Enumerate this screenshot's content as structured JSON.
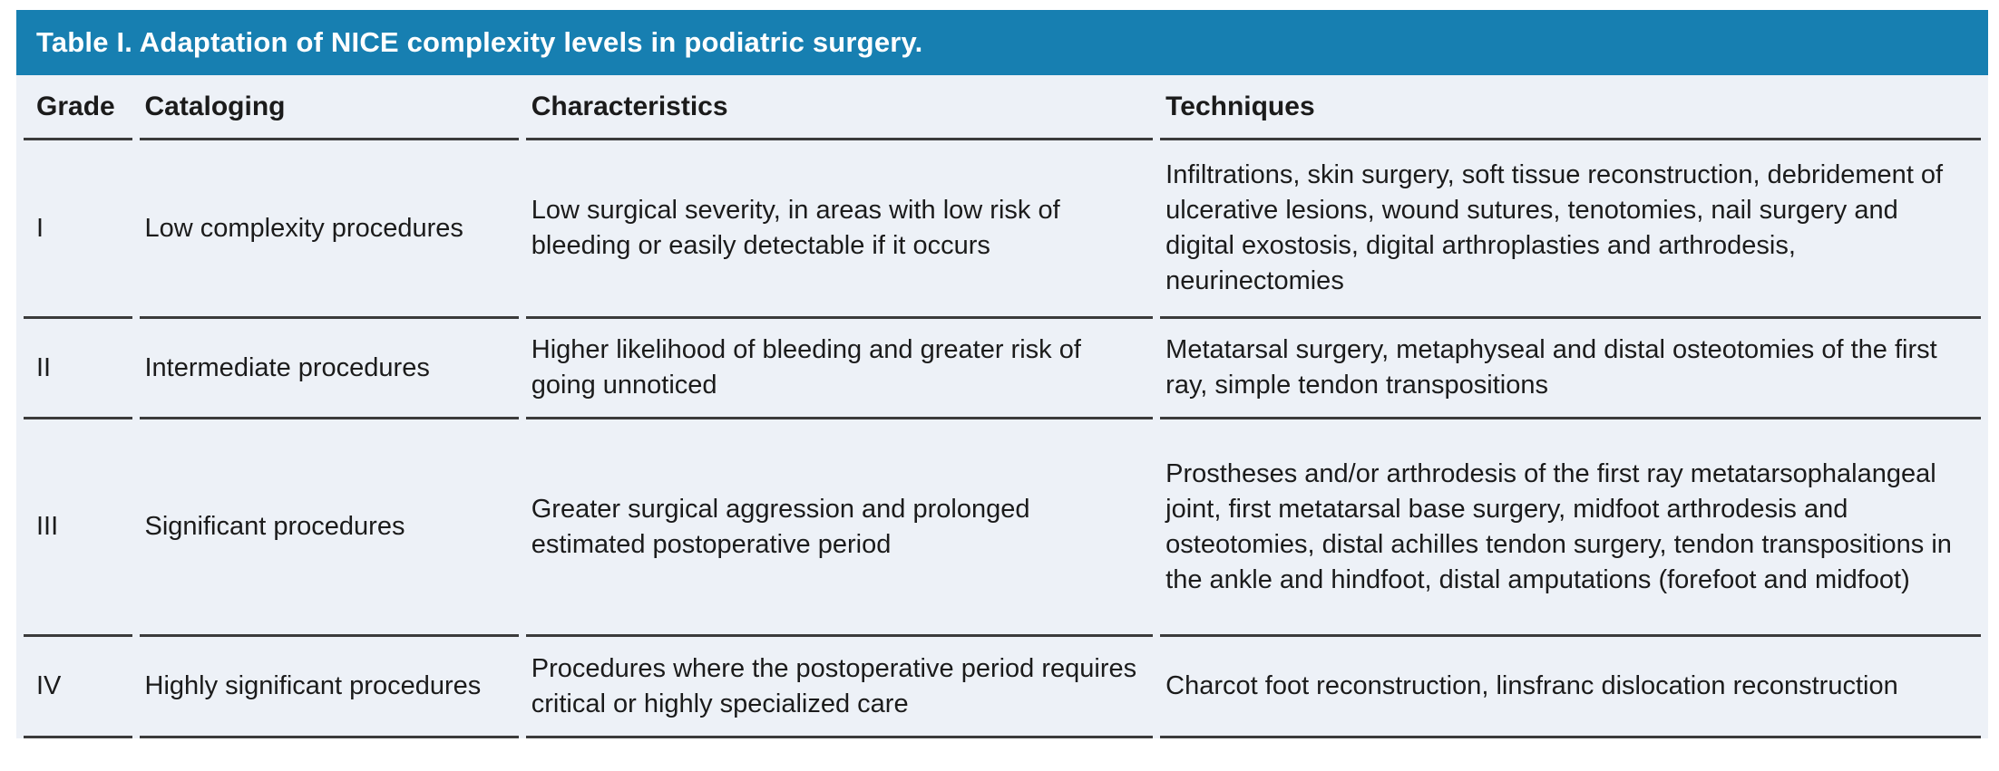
{
  "table": {
    "title": "Table I. Adaptation of NICE complexity levels in podiatric surgery.",
    "headers": {
      "grade": "Grade",
      "cataloging": "Cataloging",
      "characteristics": "Characteristics",
      "techniques": "Techniques"
    },
    "rows": [
      {
        "grade": "I",
        "cataloging": "Low complexity procedures",
        "characteristics": "Low surgical severity, in areas with low risk of bleeding or easily detectable if it occurs",
        "techniques": "Infiltrations, skin surgery, soft tissue reconstruction, debridement of ulcerative lesions, wound sutures, tenotomies, nail surgery and digital exostosis, digital arthroplasties and arthrodesis, neurinectomies"
      },
      {
        "grade": "II",
        "cataloging": "Intermediate procedures",
        "characteristics": "Higher likelihood of bleeding and greater risk of going unnoticed",
        "techniques": "Metatarsal surgery, metaphyseal and distal osteotomies of the first ray, simple tendon transpositions"
      },
      {
        "grade": "III",
        "cataloging": "Significant procedures",
        "characteristics": "Greater surgical aggression and prolonged estimated postoperative period",
        "techniques": "Prostheses and/or arthrodesis of the first ray metatarsophalangeal joint, first metatarsal base surgery, midfoot arthrodesis and osteotomies, distal achilles tendon surgery, tendon transpositions in the ankle and hindfoot, distal amputations (forefoot and midfoot)"
      },
      {
        "grade": "IV",
        "cataloging": "Highly significant procedures",
        "characteristics": "Procedures where the postoperative period requires critical or highly specialized care",
        "techniques": "Charcot foot reconstruction, linsfranc dislocation reconstruction"
      }
    ]
  },
  "colors": {
    "title_bar_background": "#177FB1",
    "title_text": "#FFFFFF",
    "row_background": "#EDF1F7",
    "rule_line": "#3B3B3B",
    "body_text": "#1B1B1B"
  }
}
